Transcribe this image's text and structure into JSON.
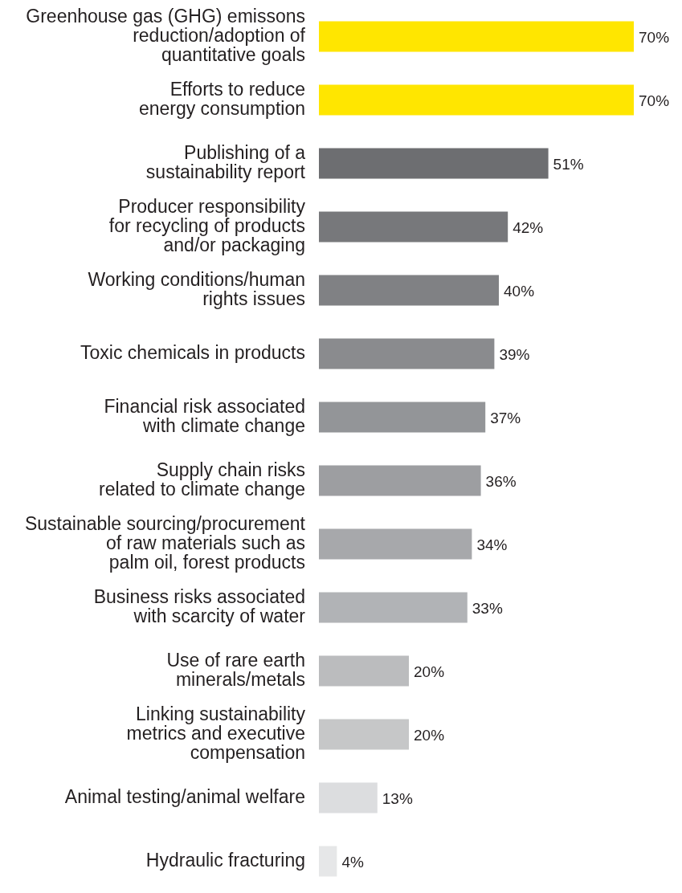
{
  "chart_data": {
    "type": "bar",
    "orientation": "horizontal",
    "categories": [
      "Greenhouse gas (GHG) emissons\nreduction/adoption of\nquantitative goals",
      "Efforts to reduce\nenergy consumption",
      "Publishing of a\nsustainability report",
      "Producer responsibility\nfor recycling of products\nand/or packaging",
      "Working conditions/human\nrights issues",
      "Toxic chemicals in products",
      "Financial risk associated\nwith climate change",
      "Supply chain risks\nrelated to climate change",
      "Sustainable sourcing/procurement\nof raw materials such as\npalm oil, forest products",
      "Business risks associated\nwith scarcity of water",
      "Use of rare earth\nminerals/metals",
      "Linking sustainability\nmetrics and executive\ncompensation",
      "Animal testing/animal welfare",
      "Hydraulic fracturing"
    ],
    "values": [
      70,
      70,
      51,
      42,
      40,
      39,
      37,
      36,
      34,
      33,
      20,
      20,
      13,
      4
    ],
    "value_labels": [
      "70%",
      "70%",
      "51%",
      "42%",
      "40%",
      "39%",
      "37%",
      "36%",
      "34%",
      "33%",
      "20%",
      "20%",
      "13%",
      "4%"
    ],
    "colors": [
      "#ffe600",
      "#ffe600",
      "#6d6e71",
      "#77787b",
      "#808184",
      "#8a8b8e",
      "#939598",
      "#9d9ea1",
      "#a7a8ab",
      "#b1b3b6",
      "#bbbcbe",
      "#c6c7c8",
      "#dcdddf",
      "#e6e7e8"
    ],
    "xlim": [
      0,
      70
    ],
    "tick_labels": "y"
  }
}
